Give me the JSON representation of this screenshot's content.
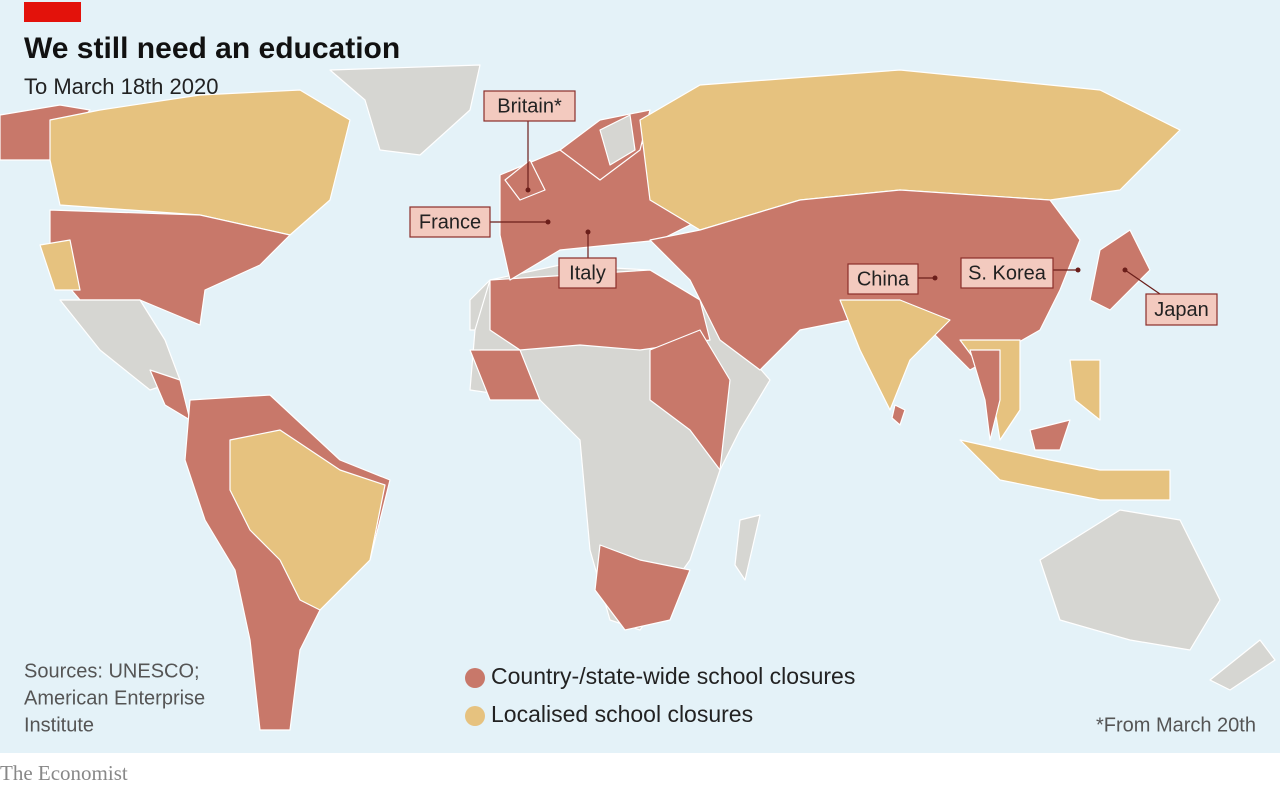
{
  "header": {
    "title": "We still need an education",
    "subtitle": "To March 18th 2020"
  },
  "labels": [
    "Britain*",
    "France",
    "Italy",
    "China",
    "S. Korea",
    "Japan"
  ],
  "legend": [
    {
      "label": "Country-/state-wide school closures",
      "color": "#c8786a"
    },
    {
      "label": "Localised school closures",
      "color": "#e6c27f"
    }
  ],
  "sources": [
    "Sources: UNESCO;",
    "American Enterprise",
    "Institute"
  ],
  "footnote": "*From March 20th",
  "brand": "The Economist"
}
